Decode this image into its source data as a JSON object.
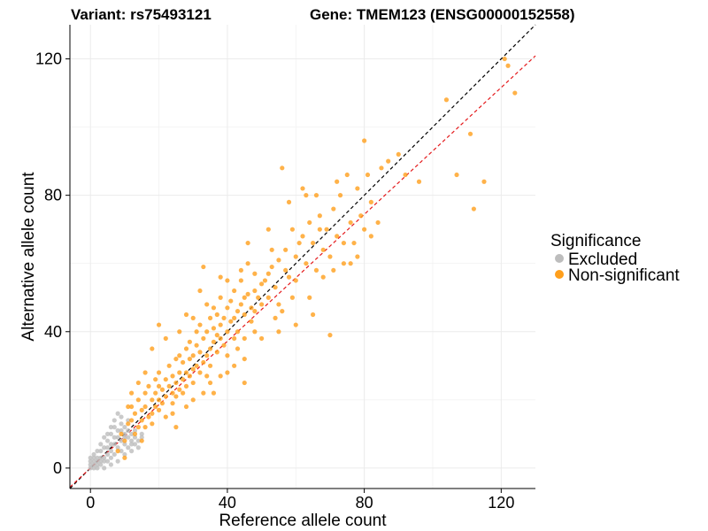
{
  "chart_data": {
    "type": "scatter",
    "title_left": "Variant: rs75493121",
    "title_right": "Gene: TMEM123 (ENSG00000152558)",
    "xlabel": "Reference allele count",
    "ylabel": "Alternative allele count",
    "xlim": [
      -6,
      130
    ],
    "ylim": [
      -6,
      130
    ],
    "x_ticks": [
      0,
      40,
      80,
      120
    ],
    "y_ticks": [
      0,
      40,
      80,
      120
    ],
    "grid": true,
    "legend": {
      "title": "Significance",
      "position": "right",
      "entries": [
        {
          "label": "Excluded",
          "color": "#bdbdbd"
        },
        {
          "label": "Non-significant",
          "color": "#ff9f1c"
        }
      ]
    },
    "reference_lines": [
      {
        "name": "y = x",
        "slope": 1.0,
        "intercept": 0,
        "color": "#000000",
        "style": "dashed"
      },
      {
        "name": "fit",
        "slope": 0.93,
        "intercept": 0,
        "color": "#e41a1c",
        "style": "dashed"
      }
    ],
    "series": [
      {
        "name": "Excluded",
        "color": "#bdbdbd",
        "points": [
          [
            0,
            1
          ],
          [
            0,
            2
          ],
          [
            0,
            3
          ],
          [
            1,
            0
          ],
          [
            1,
            2
          ],
          [
            1,
            4
          ],
          [
            2,
            1
          ],
          [
            2,
            3
          ],
          [
            2,
            0
          ],
          [
            3,
            2
          ],
          [
            3,
            5
          ],
          [
            3,
            1
          ],
          [
            4,
            3
          ],
          [
            4,
            6
          ],
          [
            4,
            0
          ],
          [
            5,
            2
          ],
          [
            5,
            4
          ],
          [
            5,
            8
          ],
          [
            5,
            6
          ],
          [
            6,
            3
          ],
          [
            6,
            10
          ],
          [
            6,
            1
          ],
          [
            6,
            5
          ],
          [
            7,
            4
          ],
          [
            7,
            7
          ],
          [
            7,
            12
          ],
          [
            7,
            14
          ],
          [
            8,
            6
          ],
          [
            8,
            9
          ],
          [
            8,
            2
          ],
          [
            8,
            16
          ],
          [
            9,
            5
          ],
          [
            9,
            8
          ],
          [
            9,
            11
          ],
          [
            9,
            13
          ],
          [
            10,
            7
          ],
          [
            10,
            10
          ],
          [
            10,
            4
          ],
          [
            10,
            12
          ],
          [
            11,
            6
          ],
          [
            11,
            9
          ],
          [
            11,
            14
          ],
          [
            12,
            8
          ],
          [
            12,
            5
          ],
          [
            12,
            10
          ],
          [
            13,
            7
          ],
          [
            13,
            9
          ],
          [
            13,
            11
          ],
          [
            14,
            6
          ],
          [
            14,
            8
          ],
          [
            15,
            10
          ],
          [
            15,
            9
          ],
          [
            2,
            5
          ],
          [
            3,
            7
          ],
          [
            4,
            9
          ],
          [
            1,
            1
          ],
          [
            0,
            0
          ],
          [
            2,
            2
          ],
          [
            5,
            10
          ],
          [
            6,
            12
          ],
          [
            7,
            9
          ],
          [
            8,
            11
          ],
          [
            9,
            15
          ],
          [
            10,
            9
          ],
          [
            11,
            11
          ],
          [
            12,
            7
          ],
          [
            4,
            2
          ],
          [
            3,
            3
          ],
          [
            6,
            7
          ],
          [
            1,
            3
          ]
        ]
      },
      {
        "name": "Non-significant",
        "color": "#ff9f1c",
        "points": [
          [
            8,
            5
          ],
          [
            9,
            10
          ],
          [
            10,
            8
          ],
          [
            10,
            3
          ],
          [
            11,
            13
          ],
          [
            12,
            14
          ],
          [
            12,
            18
          ],
          [
            13,
            10
          ],
          [
            13,
            16
          ],
          [
            14,
            12
          ],
          [
            14,
            20
          ],
          [
            15,
            14
          ],
          [
            15,
            17
          ],
          [
            16,
            12
          ],
          [
            16,
            22
          ],
          [
            16,
            18
          ],
          [
            17,
            15
          ],
          [
            17,
            24
          ],
          [
            18,
            20
          ],
          [
            18,
            16
          ],
          [
            18,
            13
          ],
          [
            19,
            22
          ],
          [
            19,
            18
          ],
          [
            19,
            26
          ],
          [
            20,
            17
          ],
          [
            20,
            24
          ],
          [
            20,
            20
          ],
          [
            20,
            28
          ],
          [
            21,
            19
          ],
          [
            21,
            23
          ],
          [
            22,
            21
          ],
          [
            22,
            26
          ],
          [
            22,
            15
          ],
          [
            23,
            24
          ],
          [
            23,
            30
          ],
          [
            24,
            22
          ],
          [
            24,
            27
          ],
          [
            24,
            19
          ],
          [
            25,
            25
          ],
          [
            25,
            32
          ],
          [
            25,
            21
          ],
          [
            26,
            23
          ],
          [
            26,
            28
          ],
          [
            26,
            33
          ],
          [
            27,
            26
          ],
          [
            27,
            31
          ],
          [
            27,
            22
          ],
          [
            28,
            28
          ],
          [
            28,
            35
          ],
          [
            28,
            24
          ],
          [
            29,
            27
          ],
          [
            29,
            32
          ],
          [
            29,
            37
          ],
          [
            30,
            29
          ],
          [
            30,
            33
          ],
          [
            30,
            25
          ],
          [
            31,
            30
          ],
          [
            31,
            36
          ],
          [
            31,
            40
          ],
          [
            32,
            28
          ],
          [
            32,
            34
          ],
          [
            32,
            42
          ],
          [
            33,
            31
          ],
          [
            33,
            38
          ],
          [
            33,
            59
          ],
          [
            34,
            33
          ],
          [
            34,
            40
          ],
          [
            34,
            27
          ],
          [
            35,
            35
          ],
          [
            35,
            44
          ],
          [
            35,
            30
          ],
          [
            36,
            37
          ],
          [
            36,
            41
          ],
          [
            36,
            47
          ],
          [
            37,
            34
          ],
          [
            37,
            39
          ],
          [
            37,
            45
          ],
          [
            38,
            38
          ],
          [
            38,
            42
          ],
          [
            38,
            50
          ],
          [
            39,
            36
          ],
          [
            39,
            44
          ],
          [
            40,
            40
          ],
          [
            40,
            47
          ],
          [
            40,
            33
          ],
          [
            41,
            43
          ],
          [
            41,
            49
          ],
          [
            42,
            44
          ],
          [
            42,
            38
          ],
          [
            42,
            52
          ],
          [
            43,
            46
          ],
          [
            43,
            40
          ],
          [
            44,
            48
          ],
          [
            44,
            55
          ],
          [
            45,
            45
          ],
          [
            45,
            50
          ],
          [
            45,
            38
          ],
          [
            46,
            51
          ],
          [
            46,
            60
          ],
          [
            47,
            47
          ],
          [
            47,
            43
          ],
          [
            48,
            52
          ],
          [
            48,
            57
          ],
          [
            49,
            50
          ],
          [
            50,
            54
          ],
          [
            50,
            48
          ],
          [
            51,
            55
          ],
          [
            52,
            57
          ],
          [
            52,
            50
          ],
          [
            53,
            59
          ],
          [
            54,
            53
          ],
          [
            55,
            61
          ],
          [
            55,
            48
          ],
          [
            56,
            88
          ],
          [
            57,
            58
          ],
          [
            57,
            64
          ],
          [
            58,
            56
          ],
          [
            59,
            70
          ],
          [
            60,
            62
          ],
          [
            60,
            55
          ],
          [
            61,
            66
          ],
          [
            62,
            68
          ],
          [
            63,
            60
          ],
          [
            64,
            72
          ],
          [
            65,
            66
          ],
          [
            66,
            58
          ],
          [
            67,
            74
          ],
          [
            68,
            64
          ],
          [
            69,
            70
          ],
          [
            70,
            39
          ],
          [
            70,
            62
          ],
          [
            71,
            76
          ],
          [
            72,
            68
          ],
          [
            73,
            80
          ],
          [
            74,
            60
          ],
          [
            75,
            86
          ],
          [
            76,
            72
          ],
          [
            77,
            66
          ],
          [
            78,
            82
          ],
          [
            79,
            74
          ],
          [
            80,
            96
          ],
          [
            80,
            70
          ],
          [
            81,
            86
          ],
          [
            82,
            78
          ],
          [
            85,
            88
          ],
          [
            87,
            90
          ],
          [
            90,
            92
          ],
          [
            92,
            86
          ],
          [
            96,
            84
          ],
          [
            104,
            108
          ],
          [
            107,
            86
          ],
          [
            111,
            98
          ],
          [
            112,
            76
          ],
          [
            115,
            84
          ],
          [
            121,
            120
          ],
          [
            122,
            118
          ],
          [
            124,
            110
          ],
          [
            20,
            42
          ],
          [
            25,
            12
          ],
          [
            30,
            20
          ],
          [
            35,
            25
          ],
          [
            40,
            28
          ],
          [
            45,
            32
          ],
          [
            50,
            38
          ],
          [
            60,
            42
          ],
          [
            65,
            45
          ],
          [
            45,
            25
          ],
          [
            55,
            40
          ],
          [
            15,
            8
          ],
          [
            18,
            35
          ],
          [
            22,
            38
          ],
          [
            28,
            45
          ],
          [
            32,
            52
          ],
          [
            38,
            56
          ],
          [
            48,
            46
          ],
          [
            53,
            64
          ],
          [
            58,
            78
          ],
          [
            62,
            82
          ],
          [
            66,
            80
          ],
          [
            72,
            84
          ],
          [
            46,
            66
          ],
          [
            52,
            70
          ],
          [
            36,
            22
          ],
          [
            42,
            30
          ],
          [
            56,
            46
          ],
          [
            64,
            50
          ],
          [
            74,
            66
          ],
          [
            78,
            62
          ],
          [
            26,
            40
          ],
          [
            30,
            44
          ],
          [
            34,
            48
          ],
          [
            40,
            55
          ],
          [
            44,
            58
          ],
          [
            14,
            25
          ],
          [
            16,
            28
          ],
          [
            12,
            22
          ],
          [
            11,
            18
          ],
          [
            24,
            16
          ],
          [
            28,
            18
          ],
          [
            33,
            22
          ],
          [
            38,
            27
          ],
          [
            43,
            35
          ],
          [
            48,
            40
          ],
          [
            54,
            44
          ],
          [
            59,
            50
          ],
          [
            68,
            56
          ],
          [
            76,
            60
          ],
          [
            82,
            68
          ],
          [
            84,
            72
          ],
          [
            63,
            80
          ],
          [
            67,
            70
          ],
          [
            71,
            58
          ]
        ]
      }
    ]
  }
}
